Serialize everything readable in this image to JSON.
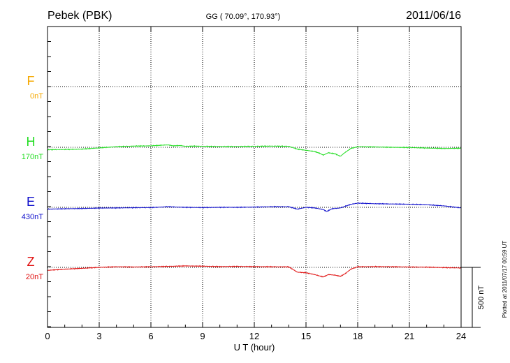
{
  "header": {
    "station": "Pebek (PBK)",
    "coords": "GG ( 70.09°, 170.93°)",
    "date": "2011/06/16"
  },
  "footer": {
    "plotted": "Plotted at 2011/07/17 00:59 UT"
  },
  "chart_data": {
    "type": "line",
    "xlabel": "U T (hour)",
    "xlim": [
      0,
      24
    ],
    "xticks": [
      "0",
      "3",
      "6",
      "9",
      "12",
      "15",
      "18",
      "21",
      "24"
    ],
    "grid": true,
    "scale_bar": {
      "label": "500 nT",
      "value": 500
    },
    "colors": {
      "F": "#f5a800",
      "H": "#22dd22",
      "E": "#1010cc",
      "Z": "#e01010"
    },
    "series": [
      {
        "name": "F",
        "baseline": "0nT",
        "points": []
      },
      {
        "name": "H",
        "baseline": "170nT",
        "points": [
          [
            0,
            -20
          ],
          [
            1,
            -18
          ],
          [
            2,
            -15
          ],
          [
            3,
            -5
          ],
          [
            4,
            5
          ],
          [
            5,
            10
          ],
          [
            6,
            12
          ],
          [
            6.7,
            18
          ],
          [
            7,
            20
          ],
          [
            7.3,
            12
          ],
          [
            7.7,
            15
          ],
          [
            8,
            8
          ],
          [
            8.5,
            10
          ],
          [
            9,
            8
          ],
          [
            10,
            6
          ],
          [
            11,
            6
          ],
          [
            12,
            8
          ],
          [
            13,
            10
          ],
          [
            14,
            8
          ],
          [
            14.5,
            -15
          ],
          [
            15,
            -25
          ],
          [
            15.5,
            -35
          ],
          [
            15.8,
            -50
          ],
          [
            16,
            -65
          ],
          [
            16.3,
            -45
          ],
          [
            16.7,
            -55
          ],
          [
            17,
            -75
          ],
          [
            17.2,
            -50
          ],
          [
            17.6,
            -10
          ],
          [
            18,
            5
          ],
          [
            19,
            3
          ],
          [
            20,
            0
          ],
          [
            21,
            -2
          ],
          [
            22,
            -6
          ],
          [
            23,
            -10
          ],
          [
            24,
            -8
          ]
        ]
      },
      {
        "name": "E",
        "baseline": "430nT",
        "points": [
          [
            0,
            -15
          ],
          [
            1,
            -12
          ],
          [
            2,
            -10
          ],
          [
            3,
            -6
          ],
          [
            4,
            -5
          ],
          [
            5,
            -3
          ],
          [
            6,
            -2
          ],
          [
            7,
            5
          ],
          [
            7.5,
            2
          ],
          [
            8,
            0
          ],
          [
            9,
            -2
          ],
          [
            10,
            0
          ],
          [
            11,
            0
          ],
          [
            12,
            2
          ],
          [
            13,
            5
          ],
          [
            14,
            5
          ],
          [
            14.5,
            -15
          ],
          [
            15,
            0
          ],
          [
            15.5,
            -5
          ],
          [
            16,
            -18
          ],
          [
            16.2,
            -35
          ],
          [
            16.5,
            -12
          ],
          [
            17,
            -5
          ],
          [
            17.3,
            10
          ],
          [
            17.6,
            25
          ],
          [
            18,
            35
          ],
          [
            19,
            30
          ],
          [
            20,
            28
          ],
          [
            21,
            26
          ],
          [
            22,
            22
          ],
          [
            23,
            12
          ],
          [
            24,
            -5
          ]
        ]
      },
      {
        "name": "Z",
        "baseline": "20nT",
        "points": [
          [
            0,
            -25
          ],
          [
            1,
            -15
          ],
          [
            2,
            -8
          ],
          [
            3,
            0
          ],
          [
            4,
            5
          ],
          [
            5,
            3
          ],
          [
            6,
            5
          ],
          [
            7,
            8
          ],
          [
            8,
            12
          ],
          [
            9,
            10
          ],
          [
            10,
            6
          ],
          [
            11,
            8
          ],
          [
            12,
            6
          ],
          [
            13,
            5
          ],
          [
            14,
            4
          ],
          [
            14.5,
            -40
          ],
          [
            15,
            -45
          ],
          [
            15.5,
            -60
          ],
          [
            16,
            -80
          ],
          [
            16.3,
            -60
          ],
          [
            16.7,
            -65
          ],
          [
            17,
            -75
          ],
          [
            17.3,
            -50
          ],
          [
            17.6,
            -15
          ],
          [
            18,
            5
          ],
          [
            19,
            6
          ],
          [
            20,
            5
          ],
          [
            21,
            3
          ],
          [
            22,
            2
          ],
          [
            23,
            -2
          ],
          [
            24,
            -5
          ]
        ]
      }
    ]
  }
}
